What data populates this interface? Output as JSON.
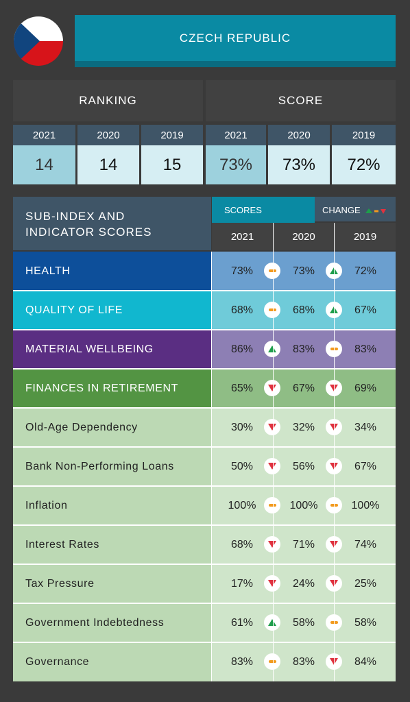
{
  "country": "CZECH REPUBLIC",
  "flag_icon": "czech-flag-icon",
  "ranking": {
    "heading": "RANKING",
    "years": [
      "2021",
      "2020",
      "2019"
    ],
    "values": [
      "14",
      "14",
      "15"
    ]
  },
  "score": {
    "heading": "SCORE",
    "years": [
      "2021",
      "2020",
      "2019"
    ],
    "values": [
      "73%",
      "73%",
      "72%"
    ]
  },
  "table": {
    "heading_line1": "SUB-INDEX AND",
    "heading_line2": "INDICATOR SCORES",
    "scores_label": "SCORES",
    "change_label": "CHANGE",
    "legend_icons": [
      "up-triangle-icon",
      "dash-icon",
      "down-triangle-icon"
    ],
    "years": [
      "2021",
      "2020",
      "2019"
    ],
    "rows": [
      {
        "label": "HEALTH",
        "v2021": "73%",
        "v2020": "73%",
        "v2019": "72%",
        "chg1": "same",
        "chg2": "up"
      },
      {
        "label": "QUALITY OF LIFE",
        "v2021": "68%",
        "v2020": "68%",
        "v2019": "67%",
        "chg1": "same",
        "chg2": "up"
      },
      {
        "label": "MATERIAL WELLBEING",
        "v2021": "86%",
        "v2020": "83%",
        "v2019": "83%",
        "chg1": "up",
        "chg2": "same"
      },
      {
        "label": "FINANCES IN RETIREMENT",
        "v2021": "65%",
        "v2020": "67%",
        "v2019": "69%",
        "chg1": "down",
        "chg2": "down"
      },
      {
        "label": "Old-Age Dependency",
        "v2021": "30%",
        "v2020": "32%",
        "v2019": "34%",
        "chg1": "down",
        "chg2": "down"
      },
      {
        "label": "Bank Non-Performing Loans",
        "v2021": "50%",
        "v2020": "56%",
        "v2019": "67%",
        "chg1": "down",
        "chg2": "down"
      },
      {
        "label": "Inflation",
        "v2021": "100%",
        "v2020": "100%",
        "v2019": "100%",
        "chg1": "same",
        "chg2": "same"
      },
      {
        "label": "Interest Rates",
        "v2021": "68%",
        "v2020": "71%",
        "v2019": "74%",
        "chg1": "down",
        "chg2": "down"
      },
      {
        "label": "Tax Pressure",
        "v2021": "17%",
        "v2020": "24%",
        "v2019": "25%",
        "chg1": "down",
        "chg2": "down"
      },
      {
        "label": "Government Indebtedness",
        "v2021": "61%",
        "v2020": "58%",
        "v2019": "58%",
        "chg1": "up",
        "chg2": "same"
      },
      {
        "label": "Governance",
        "v2021": "83%",
        "v2020": "83%",
        "v2019": "84%",
        "chg1": "same",
        "chg2": "down"
      }
    ]
  },
  "colors": {
    "teal": "#0a8aa3",
    "slate": "#3f5567",
    "health": "#0d4f9a",
    "quality_of_life": "#11b7cf",
    "material_wellbeing": "#5a2e82",
    "finances_in_retirement": "#539443",
    "indicator_row": "#bcd9b4",
    "up": "#1f9e4b",
    "same": "#f29a1e",
    "down": "#e0323f"
  }
}
